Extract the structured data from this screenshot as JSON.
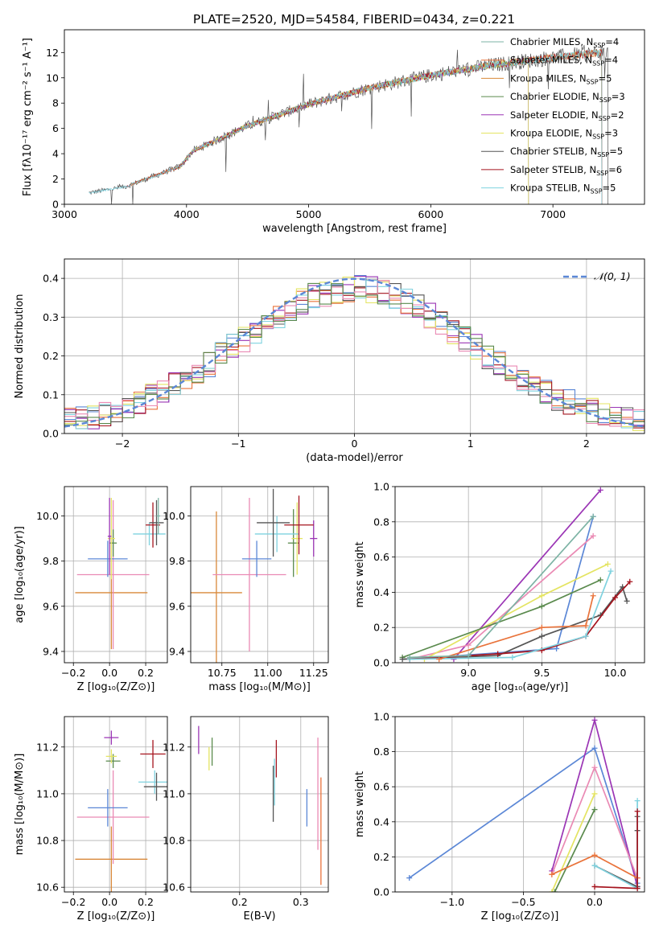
{
  "figure_title": "PLATE=2520, MJD=54584, FIBERID=0434, z=0.221",
  "colors": {
    "chabrier_miles": "#7cb3a4",
    "salpeter_miles": "#e9733b",
    "kroupa_miles": "#d9893a",
    "chabrier_elodie": "#5a8a4d",
    "salpeter_elodie": "#9b35b5",
    "kroupa_elodie": "#e4e462",
    "chabrier_stelib": "#555555",
    "salpeter_stelib": "#a5141e",
    "kroupa_stelib": "#7fd2df",
    "blue": "#5b87d6",
    "pink": "#ea8ab4",
    "grid": "#b0b0b0"
  },
  "legend": [
    {
      "label": "Chabrier MILES, N",
      "sub": "SSP",
      "n": "=4",
      "color": "#7cb3a4"
    },
    {
      "label": "Salpeter MILES, N",
      "sub": "SSP",
      "n": "=4",
      "color": "#e9733b"
    },
    {
      "label": "Kroupa MILES, N",
      "sub": "SSP",
      "n": "=5",
      "color": "#d9893a"
    },
    {
      "label": "Chabrier ELODIE, N",
      "sub": "SSP",
      "n": "=3",
      "color": "#5a8a4d"
    },
    {
      "label": "Salpeter ELODIE, N",
      "sub": "SSP",
      "n": "=2",
      "color": "#9b35b5"
    },
    {
      "label": "Kroupa ELODIE, N",
      "sub": "SSP",
      "n": "=3",
      "color": "#e4e462"
    },
    {
      "label": "Chabrier STELIB, N",
      "sub": "SSP",
      "n": "=5",
      "color": "#555555"
    },
    {
      "label": "Salpeter STELIB, N",
      "sub": "SSP",
      "n": "=6",
      "color": "#a5141e"
    },
    {
      "label": "Kroupa STELIB, N",
      "sub": "SSP",
      "n": "=5",
      "color": "#7fd2df"
    }
  ],
  "chart_data": [
    {
      "id": "spectrum",
      "type": "line",
      "xlabel": "wavelength [Angstrom, rest frame]",
      "ylabel": "Flux [fλ10⁻¹⁷ erg cm⁻² s⁻¹ A⁻¹]",
      "xlim": [
        3000,
        7750
      ],
      "ylim": [
        0,
        13.8
      ],
      "xticks": [
        3000,
        4000,
        5000,
        6000,
        7000
      ],
      "yticks": [
        0,
        2,
        4,
        6,
        8,
        10,
        12
      ],
      "continuum": {
        "x": [
          3200,
          3500,
          3700,
          3950,
          4050,
          4500,
          5000,
          5500,
          6000,
          6500,
          7000,
          7400
        ],
        "y": [
          0.9,
          1.4,
          2.1,
          3.0,
          4.2,
          6.2,
          7.9,
          9.2,
          10.2,
          11.0,
          11.6,
          12.0
        ]
      }
    },
    {
      "id": "residuals",
      "type": "histogram",
      "xlabel": "(data-model)/error",
      "ylabel": "Normed distribution",
      "xlim": [
        -2.5,
        2.5
      ],
      "ylim": [
        0,
        0.45
      ],
      "xticks": [
        -2,
        -1,
        0,
        1,
        2
      ],
      "yticks": [
        0.0,
        0.1,
        0.2,
        0.3,
        0.4
      ],
      "gaussian_label": "𝒩(0, 1)",
      "bin_width": 0.1
    },
    {
      "id": "age_vs_Z",
      "type": "errorbar",
      "xlabel": "Z [log₁₀(Z/Z⊙)]",
      "ylabel": "age  [log₁₀(age/yr)]",
      "xlim": [
        -0.25,
        0.32
      ],
      "ylim": [
        9.35,
        10.13
      ],
      "xticks": [
        -0.2,
        0.0,
        0.2
      ],
      "yticks": [
        9.4,
        9.6,
        9.8,
        10.0
      ],
      "points": [
        {
          "x": 0.01,
          "y": 9.66,
          "xerr": 0.2,
          "yerr": 0.25,
          "c": "kroupa_miles"
        },
        {
          "x": 0.02,
          "y": 9.74,
          "xerr": 0.2,
          "yerr": 0.33,
          "c": "pink"
        },
        {
          "x": -0.01,
          "y": 9.81,
          "xerr": 0.11,
          "yerr": 0.08,
          "c": "blue"
        },
        {
          "x": 0.02,
          "y": 9.88,
          "xerr": 0.02,
          "yerr": 0.06,
          "c": "chabrier_elodie"
        },
        {
          "x": 0.01,
          "y": 9.9,
          "xerr": 0.02,
          "yerr": 0.18,
          "c": "kroupa_elodie"
        },
        {
          "x": 0.0,
          "y": 9.91,
          "xerr": 0.01,
          "yerr": 0.17,
          "c": "salpeter_elodie"
        },
        {
          "x": 0.22,
          "y": 9.92,
          "xerr": 0.09,
          "yerr": 0.05,
          "c": "kroupa_stelib"
        },
        {
          "x": 0.24,
          "y": 9.96,
          "xerr": 0.04,
          "yerr": 0.1,
          "c": "salpeter_stelib"
        },
        {
          "x": 0.26,
          "y": 9.97,
          "xerr": 0.04,
          "yerr": 0.1,
          "c": "chabrier_stelib"
        },
        {
          "x": 0.27,
          "y": 10.0,
          "xerr": 0.01,
          "yerr": 0.08,
          "c": "chabrier_miles"
        }
      ]
    },
    {
      "id": "age_vs_mass",
      "type": "errorbar",
      "xlabel": "mass [log₁₀(M/M⊙)]",
      "ylabel": "",
      "xlim": [
        10.58,
        11.33
      ],
      "ylim": [
        9.35,
        10.13
      ],
      "xticks": [
        10.75,
        11.0,
        11.25
      ],
      "yticks": [
        9.4,
        9.6,
        9.8,
        10.0
      ],
      "points": [
        {
          "x": 10.72,
          "y": 9.66,
          "xerr": 0.14,
          "yerr": 0.36,
          "c": "kroupa_miles"
        },
        {
          "x": 10.9,
          "y": 9.74,
          "xerr": 0.2,
          "yerr": 0.34,
          "c": "pink"
        },
        {
          "x": 10.94,
          "y": 9.81,
          "xerr": 0.08,
          "yerr": 0.08,
          "c": "blue"
        },
        {
          "x": 11.14,
          "y": 9.88,
          "xerr": 0.03,
          "yerr": 0.15,
          "c": "chabrier_elodie"
        },
        {
          "x": 11.16,
          "y": 9.9,
          "xerr": 0.03,
          "yerr": 0.16,
          "c": "kroupa_elodie"
        },
        {
          "x": 11.25,
          "y": 9.9,
          "xerr": 0.02,
          "yerr": 0.08,
          "c": "salpeter_elodie"
        },
        {
          "x": 11.05,
          "y": 9.92,
          "xerr": 0.12,
          "yerr": 0.08,
          "c": "kroupa_stelib"
        },
        {
          "x": 11.17,
          "y": 9.96,
          "xerr": 0.08,
          "yerr": 0.13,
          "c": "salpeter_stelib"
        },
        {
          "x": 11.03,
          "y": 9.97,
          "xerr": 0.09,
          "yerr": 0.15,
          "c": "chabrier_stelib"
        }
      ]
    },
    {
      "id": "weight_vs_age",
      "type": "line",
      "xlabel": "age  [log₁₀(age/yr)]",
      "ylabel": "mass weight",
      "xlim": [
        8.5,
        10.2
      ],
      "ylim": [
        0.0,
        1.0
      ],
      "xticks": [
        9.0,
        9.5,
        10.0
      ],
      "yticks": [
        0.0,
        0.2,
        0.4,
        0.6,
        0.8,
        1.0
      ],
      "series": [
        {
          "c": "salpeter_elodie",
          "x": [
            8.9,
            9.9
          ],
          "y": [
            0.02,
            0.98
          ]
        },
        {
          "c": "blue",
          "x": [
            8.6,
            9.6,
            9.85
          ],
          "y": [
            0.02,
            0.08,
            0.83
          ]
        },
        {
          "c": "pink",
          "x": [
            8.6,
            9.0,
            9.85
          ],
          "y": [
            0.02,
            0.1,
            0.72
          ]
        },
        {
          "c": "kroupa_elodie",
          "x": [
            8.7,
            9.5,
            9.95
          ],
          "y": [
            0.02,
            0.38,
            0.56
          ]
        },
        {
          "c": "chabrier_elodie",
          "x": [
            8.55,
            9.5,
            9.9
          ],
          "y": [
            0.03,
            0.32,
            0.47
          ]
        },
        {
          "c": "chabrier_stelib",
          "x": [
            8.55,
            9.2,
            9.5,
            9.9,
            10.05,
            10.08
          ],
          "y": [
            0.02,
            0.04,
            0.15,
            0.27,
            0.43,
            0.35
          ]
        },
        {
          "c": "salpeter_stelib",
          "x": [
            8.6,
            9.2,
            9.5,
            9.8,
            10.0,
            10.1
          ],
          "y": [
            0.02,
            0.05,
            0.07,
            0.15,
            0.37,
            0.46
          ]
        },
        {
          "c": "kroupa_stelib",
          "x": [
            8.6,
            9.3,
            9.8,
            9.97
          ],
          "y": [
            0.02,
            0.03,
            0.15,
            0.52
          ]
        },
        {
          "c": "salpeter_miles",
          "x": [
            8.8,
            9.5,
            9.8,
            9.85
          ],
          "y": [
            0.02,
            0.2,
            0.21,
            0.38
          ]
        },
        {
          "c": "chabrier_miles",
          "x": [
            8.6,
            9.0,
            9.85
          ],
          "y": [
            0.03,
            0.04,
            0.83
          ]
        }
      ]
    },
    {
      "id": "mass_vs_Z",
      "type": "errorbar",
      "xlabel": "Z [log₁₀(Z/Z⊙)]",
      "ylabel": "mass [log₁₀(M/M⊙)]",
      "xlim": [
        -0.25,
        0.32
      ],
      "ylim": [
        10.58,
        11.33
      ],
      "xticks": [
        -0.2,
        0.0,
        0.2
      ],
      "yticks": [
        10.6,
        10.8,
        11.0,
        11.2
      ],
      "points": [
        {
          "x": 0.01,
          "y": 10.72,
          "xerr": 0.2,
          "yerr": 0.14,
          "c": "kroupa_miles"
        },
        {
          "x": 0.02,
          "y": 10.9,
          "xerr": 0.2,
          "yerr": 0.2,
          "c": "pink"
        },
        {
          "x": -0.01,
          "y": 10.94,
          "xerr": 0.11,
          "yerr": 0.08,
          "c": "blue"
        },
        {
          "x": 0.02,
          "y": 11.14,
          "xerr": 0.04,
          "yerr": 0.03,
          "c": "chabrier_elodie"
        },
        {
          "x": 0.01,
          "y": 11.16,
          "xerr": 0.03,
          "yerr": 0.03,
          "c": "kroupa_elodie"
        },
        {
          "x": 0.01,
          "y": 11.24,
          "xerr": 0.04,
          "yerr": 0.03,
          "c": "salpeter_elodie"
        },
        {
          "x": 0.24,
          "y": 11.17,
          "xerr": 0.07,
          "yerr": 0.06,
          "c": "salpeter_stelib"
        },
        {
          "x": 0.25,
          "y": 11.05,
          "xerr": 0.09,
          "yerr": 0.05,
          "c": "kroupa_stelib"
        },
        {
          "x": 0.26,
          "y": 11.03,
          "xerr": 0.07,
          "yerr": 0.06,
          "c": "chabrier_stelib"
        }
      ]
    },
    {
      "id": "mass_vs_ebv",
      "type": "errorbar",
      "xlabel": "E(B-V)",
      "ylabel": "",
      "xlim": [
        0.12,
        0.345
      ],
      "ylim": [
        10.58,
        11.33
      ],
      "xticks": [
        0.2,
        0.3
      ],
      "yticks": [
        10.6,
        10.8,
        11.0,
        11.2
      ],
      "points": [
        {
          "x": 0.133,
          "y": 11.23,
          "xerr": 0,
          "yerr": 0.06,
          "c": "salpeter_elodie"
        },
        {
          "x": 0.15,
          "y": 11.15,
          "xerr": 0,
          "yerr": 0.05,
          "c": "kroupa_elodie"
        },
        {
          "x": 0.155,
          "y": 11.18,
          "xerr": 0,
          "yerr": 0.06,
          "c": "chabrier_elodie"
        },
        {
          "x": 0.255,
          "y": 11.0,
          "xerr": 0,
          "yerr": 0.12,
          "c": "chabrier_stelib"
        },
        {
          "x": 0.257,
          "y": 11.05,
          "xerr": 0,
          "yerr": 0.1,
          "c": "kroupa_stelib"
        },
        {
          "x": 0.26,
          "y": 11.15,
          "xerr": 0,
          "yerr": 0.08,
          "c": "salpeter_stelib"
        },
        {
          "x": 0.31,
          "y": 10.94,
          "xerr": 0,
          "yerr": 0.08,
          "c": "blue"
        },
        {
          "x": 0.328,
          "y": 11.0,
          "xerr": 0,
          "yerr": 0.24,
          "c": "pink"
        },
        {
          "x": 0.333,
          "y": 10.84,
          "xerr": 0,
          "yerr": 0.23,
          "c": "salpeter_miles"
        }
      ]
    },
    {
      "id": "weight_vs_Z",
      "type": "line",
      "xlabel": "Z [log₁₀(Z/Z⊙)]",
      "ylabel": "mass weight",
      "xlim": [
        -1.4,
        0.35
      ],
      "ylim": [
        0.0,
        1.0
      ],
      "xticks": [
        -1.0,
        -0.5,
        0.0
      ],
      "yticks": [
        0.0,
        0.2,
        0.4,
        0.6,
        0.8,
        1.0
      ],
      "series": [
        {
          "c": "blue",
          "x": [
            -1.3,
            0.0,
            0.3
          ],
          "y": [
            0.08,
            0.82,
            0.05
          ]
        },
        {
          "c": "salpeter_elodie",
          "x": [
            -0.3,
            0.0,
            0.3
          ],
          "y": [
            0.12,
            0.98,
            0.03
          ]
        },
        {
          "c": "pink",
          "x": [
            -0.3,
            0.0,
            0.3
          ],
          "y": [
            0.1,
            0.71,
            0.08
          ]
        },
        {
          "c": "kroupa_elodie",
          "x": [
            -0.3,
            0.0
          ],
          "y": [
            0.0,
            0.56
          ]
        },
        {
          "c": "chabrier_elodie",
          "x": [
            -0.28,
            0.0
          ],
          "y": [
            0.0,
            0.47
          ]
        },
        {
          "c": "salpeter_miles",
          "x": [
            -0.3,
            0.0,
            0.3
          ],
          "y": [
            0.1,
            0.21,
            0.08
          ]
        },
        {
          "c": "chabrier_stelib",
          "x": [
            0.0,
            0.3,
            0.3,
            0.3
          ],
          "y": [
            0.15,
            0.03,
            0.43,
            0.35
          ]
        },
        {
          "c": "kroupa_stelib",
          "x": [
            0.0,
            0.3,
            0.3
          ],
          "y": [
            0.15,
            0.02,
            0.52
          ]
        },
        {
          "c": "salpeter_stelib",
          "x": [
            0.0,
            0.3,
            0.3
          ],
          "y": [
            0.03,
            0.02,
            0.46
          ]
        }
      ]
    }
  ]
}
